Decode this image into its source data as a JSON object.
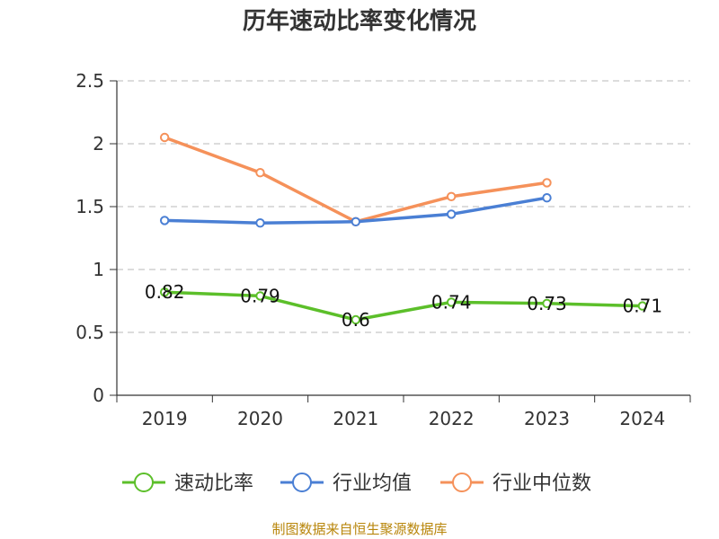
{
  "chart_data": {
    "type": "line",
    "title": "历年速动比率变化情况",
    "categories": [
      "2019",
      "2020",
      "2021",
      "2022",
      "2023",
      "2024"
    ],
    "ylim": [
      0,
      2.5
    ],
    "yticks": [
      "0",
      "0.5",
      "1",
      "1.5",
      "2",
      "2.5"
    ],
    "grid": true,
    "legend_position": "bottom",
    "series": [
      {
        "name": "速动比率",
        "color": "#5cbf2a",
        "values": [
          0.82,
          0.79,
          0.6,
          0.74,
          0.73,
          0.71
        ],
        "labels": [
          "0.82",
          "0.79",
          "0.6",
          "0.74",
          "0.73",
          "0.71"
        ]
      },
      {
        "name": "行业均值",
        "color": "#4a7fd4",
        "values": [
          1.39,
          1.37,
          1.38,
          1.44,
          1.57,
          null
        ]
      },
      {
        "name": "行业中位数",
        "color": "#f5915a",
        "values": [
          2.05,
          1.77,
          1.38,
          1.58,
          1.69,
          null
        ]
      }
    ]
  },
  "source": "制图数据来自恒生聚源数据库"
}
